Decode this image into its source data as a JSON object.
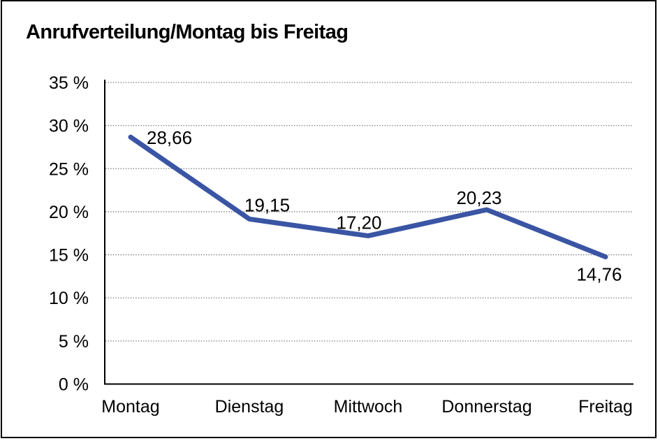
{
  "title": "Anrufverteilung/Montag bis Freitag",
  "colors": {
    "background": "#FFFFFF",
    "frame_border": "#000000",
    "axis": "#000000",
    "grid": "#777777",
    "text": "#000000",
    "line": "#3A55A4"
  },
  "chart_data": {
    "type": "line",
    "title": "Anrufverteilung/Montag bis Freitag",
    "categories": [
      "Montag",
      "Dienstag",
      "Mittwoch",
      "Donnerstag",
      "Freitag"
    ],
    "values": [
      28.66,
      19.15,
      17.2,
      20.23,
      14.76
    ],
    "value_labels": [
      "28,66",
      "19,15",
      "17,20",
      "20,23",
      "14,76"
    ],
    "series_name": "Anrufverteilung",
    "xlabel": "",
    "ylabel": "",
    "ylim": [
      0,
      35
    ],
    "y_tick_step": 5,
    "y_tick_labels": [
      "0 %",
      "5 %",
      "10 %",
      "15 %",
      "20 %",
      "25 %",
      "30 %",
      "35 %"
    ],
    "grid": "horizontal-dotted",
    "legend": "none",
    "line_color": "#3A55A4"
  }
}
